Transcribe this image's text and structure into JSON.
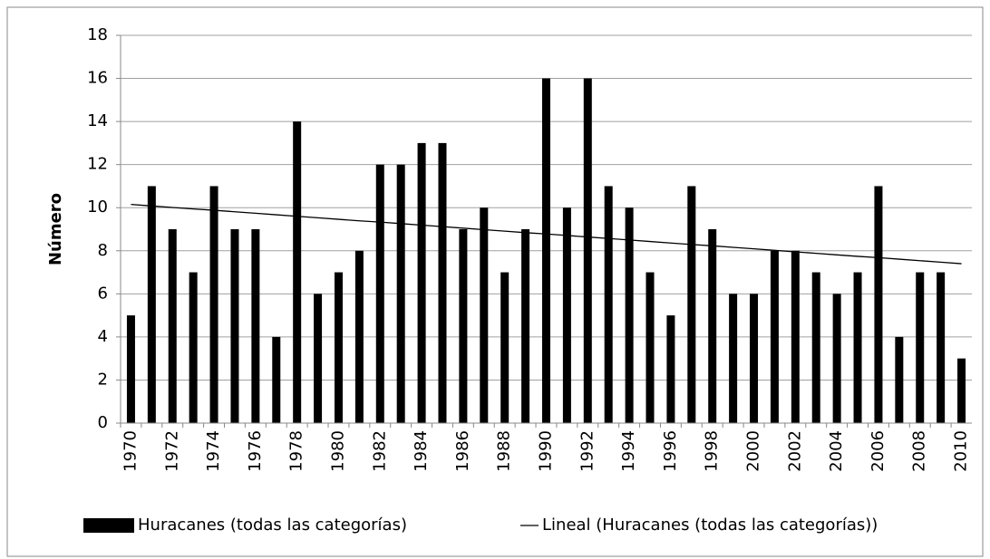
{
  "chart_data": {
    "type": "bar",
    "y_label": "Número",
    "categories": [
      "1970",
      null,
      "1972",
      null,
      "1974",
      null,
      "1976",
      null,
      "1978",
      null,
      "1980",
      null,
      "1982",
      null,
      "1984",
      null,
      "1986",
      null,
      "1988",
      null,
      "1990",
      null,
      "1992",
      null,
      "1994",
      null,
      "1996",
      null,
      "1998",
      null,
      "2000",
      null,
      "2002",
      null,
      "2004",
      null,
      "2006",
      null,
      "2008",
      null,
      "2010"
    ],
    "series": [
      {
        "name": "Huracanes (todas las categorías)",
        "color": "#000000",
        "values": [
          5,
          11,
          9,
          7,
          11,
          9,
          9,
          4,
          14,
          6,
          7,
          8,
          12,
          12,
          13,
          13,
          9,
          10,
          7,
          9,
          16,
          10,
          16,
          11,
          10,
          7,
          5,
          11,
          9,
          6,
          6,
          8,
          8,
          7,
          6,
          7,
          11,
          4,
          7,
          7,
          3
        ]
      },
      {
        "name": "Lineal (Huracanes (todas las categorías))",
        "type": "line",
        "color": "#000000",
        "values": [
          10.15,
          10.08,
          10.01,
          9.94,
          9.88,
          9.81,
          9.74,
          9.67,
          9.6,
          9.53,
          9.46,
          9.39,
          9.33,
          9.26,
          9.19,
          9.12,
          9.05,
          8.98,
          8.91,
          8.84,
          8.78,
          8.71,
          8.64,
          8.57,
          8.5,
          8.43,
          8.36,
          8.29,
          8.23,
          8.16,
          8.09,
          8.02,
          7.95,
          7.88,
          7.81,
          7.74,
          7.68,
          7.61,
          7.54,
          7.47,
          7.4
        ]
      }
    ],
    "ylim": [
      0,
      18
    ],
    "yticks": [
      0,
      2,
      4,
      6,
      8,
      10,
      12,
      14,
      16,
      18
    ],
    "grid": true,
    "legend": "bottom"
  }
}
